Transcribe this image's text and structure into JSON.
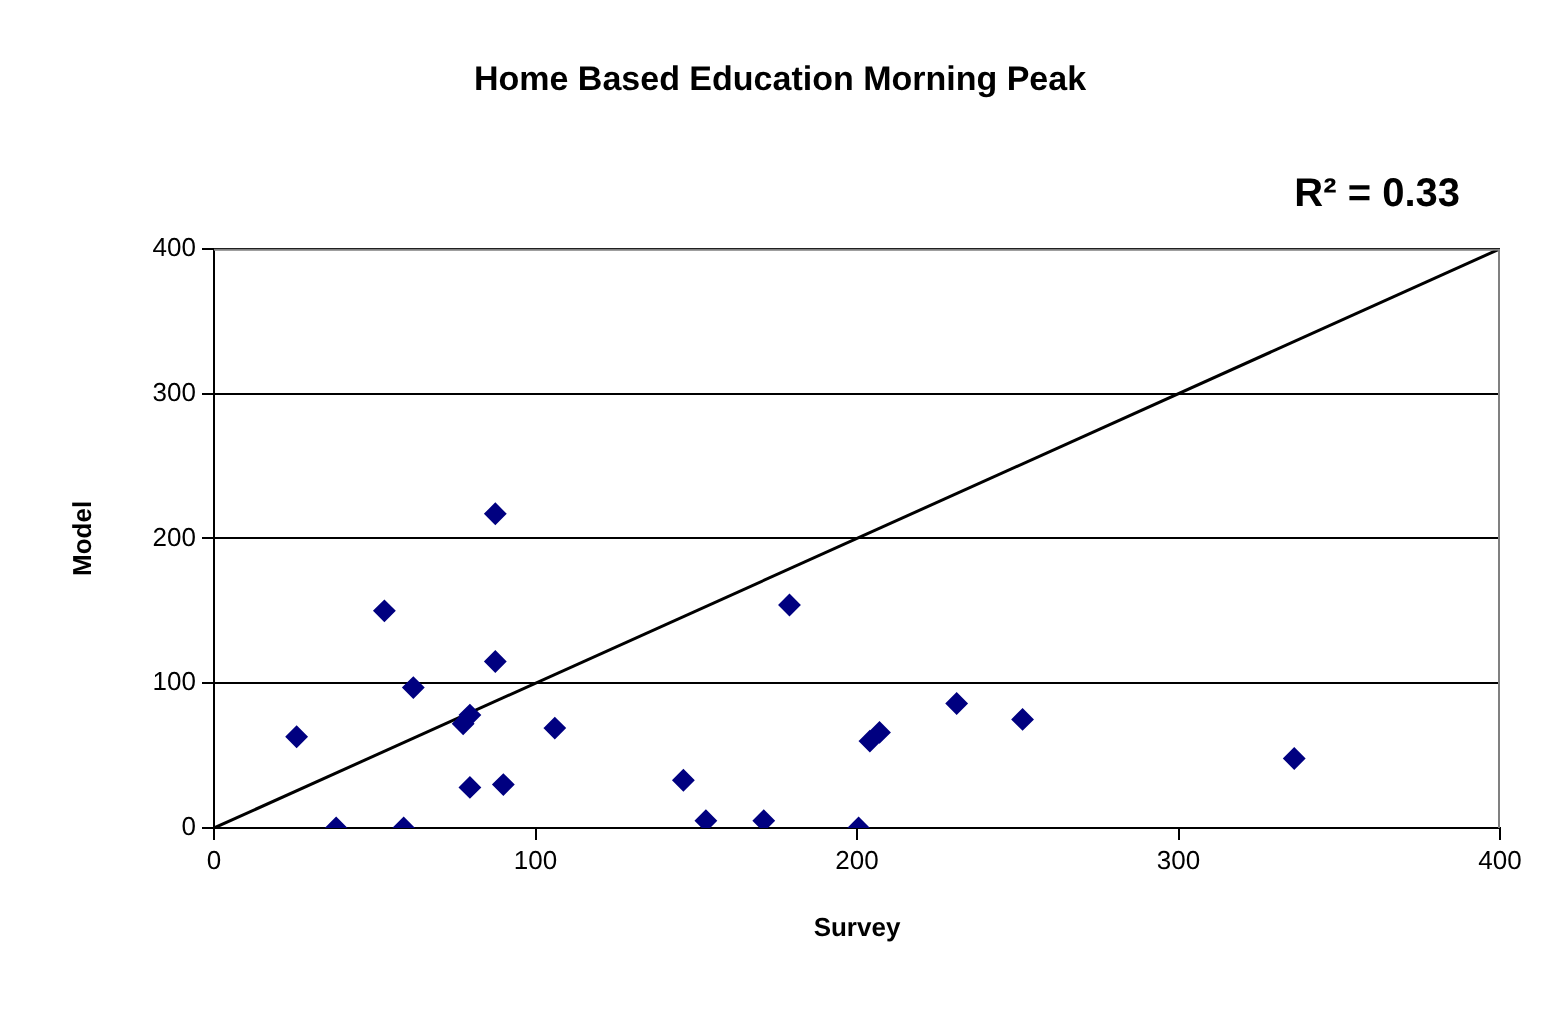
{
  "chart_data": {
    "type": "scatter",
    "title": "Home Based Education Morning Peak",
    "xlabel": "Survey",
    "ylabel": "Model",
    "annotations": [
      "R² = 0.33"
    ],
    "xlim": [
      0,
      400
    ],
    "xticks": [
      0,
      100,
      200,
      300,
      400
    ],
    "ylim": [
      0,
      400
    ],
    "yticks": [
      0,
      100,
      200,
      300,
      400
    ],
    "grid": "y",
    "legend": false,
    "series": [
      {
        "type": "scatter",
        "color": "#000080",
        "marker": "diamond",
        "x": [
          25.7,
          38,
          59,
          53,
          62,
          77.5,
          79.6,
          87.5,
          87.5,
          79.6,
          90,
          106,
          179,
          146,
          153,
          171,
          200.5,
          204,
          207,
          231,
          251.5,
          336
        ],
        "values": [
          63,
          0,
          0,
          150,
          97,
          72,
          78,
          217,
          115,
          28,
          30,
          69,
          154,
          33,
          5,
          5,
          0,
          60,
          66,
          86,
          75,
          48
        ]
      },
      {
        "type": "line",
        "color": "#000000",
        "marker": "none",
        "x": [
          0,
          400
        ],
        "values": [
          0,
          400
        ]
      }
    ]
  }
}
